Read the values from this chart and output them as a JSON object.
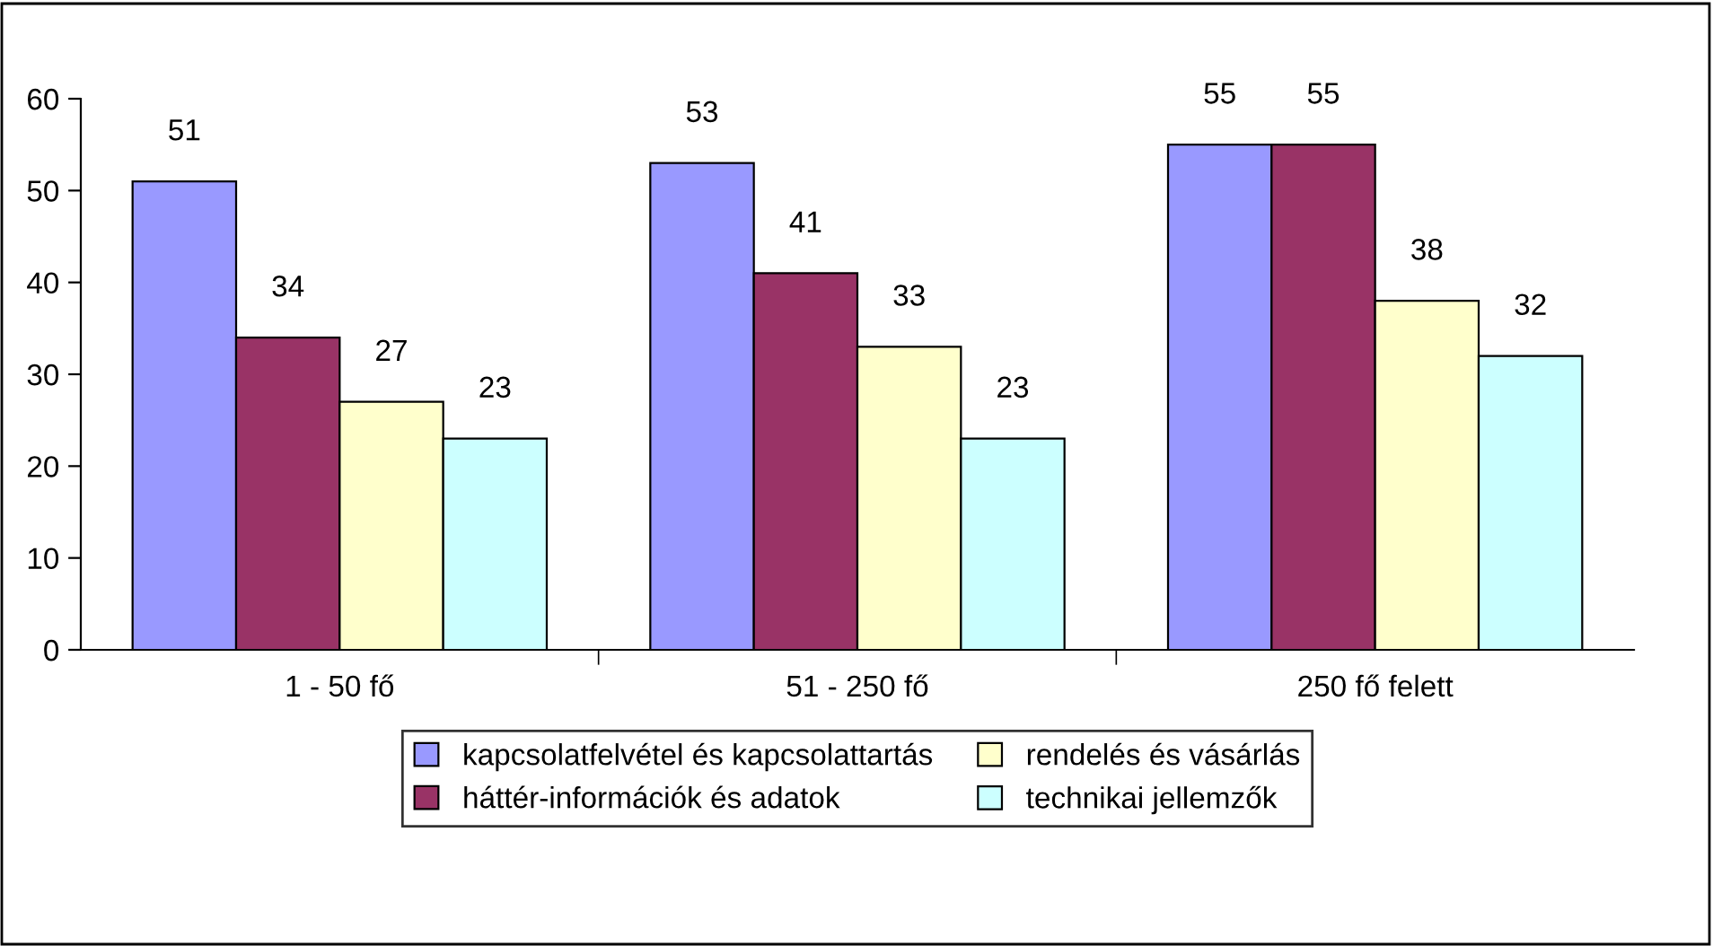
{
  "chart_data": {
    "type": "bar",
    "categories": [
      "1 - 50 fő",
      "51 - 250 fő",
      "250 fő felett"
    ],
    "series": [
      {
        "name": "kapcsolatfelvétel és kapcsolattartás",
        "color": "#9999ff",
        "values": [
          51,
          53,
          55
        ]
      },
      {
        "name": "háttér-információk és adatok",
        "color": "#993366",
        "values": [
          34,
          41,
          55
        ]
      },
      {
        "name": "rendelés és vásárlás",
        "color": "#ffffcc",
        "values": [
          27,
          33,
          38
        ]
      },
      {
        "name": "technikai jellemzők",
        "color": "#ccffff",
        "values": [
          23,
          23,
          32
        ]
      }
    ],
    "ylim": [
      0,
      60
    ],
    "yticks": [
      0,
      10,
      20,
      30,
      40,
      50,
      60
    ],
    "data_labels": true,
    "grid": false,
    "legend": "bottom"
  }
}
